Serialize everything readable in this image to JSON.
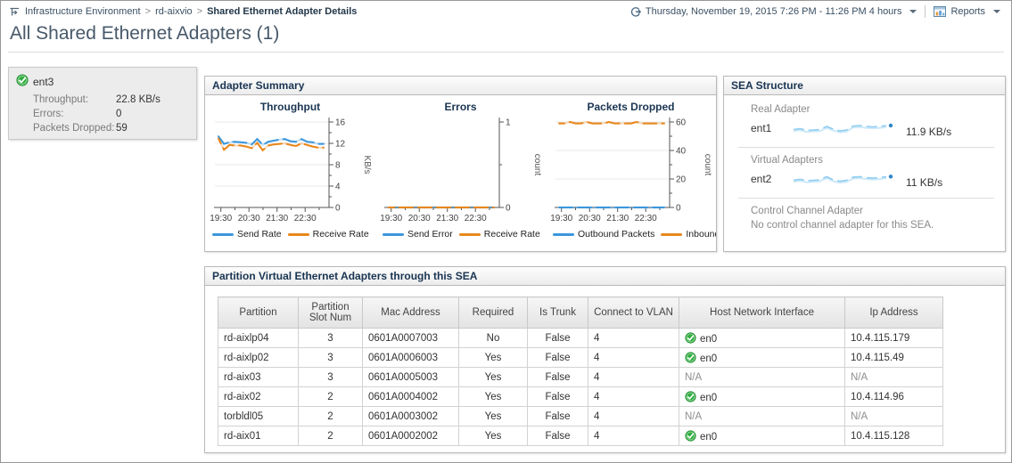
{
  "header": {
    "breadcrumb": {
      "separator": ">",
      "items": [
        "Infrastructure Environment",
        "rd-aixvio",
        "Shared Ethernet Adapter Details"
      ]
    },
    "time_range": "Thursday, November 19, 2015 7:26 PM - 11:26 PM 4 hours",
    "reports_label": "Reports"
  },
  "page_title": "All Shared Ethernet Adapters (1)",
  "adapter_card": {
    "name": "ent3",
    "rows": [
      {
        "label": "Throughput:",
        "value": "22.8 KB/s"
      },
      {
        "label": "Errors:",
        "value": "0"
      },
      {
        "label": "Packets Dropped:",
        "value": "59"
      }
    ]
  },
  "panels": {
    "adapter_summary_title": "Adapter Summary",
    "sea_structure_title": "SEA Structure",
    "partition_table_title": "Partition Virtual Ethernet Adapters through this SEA"
  },
  "sea_structure": {
    "sections": [
      {
        "label": "Real Adapter",
        "adapter": "ent1",
        "value": "11.9 KB/s",
        "spark": [
          11.4,
          11.6,
          11.2,
          11.3,
          11.4,
          12.1,
          11.5,
          11.1,
          11.3,
          12.2,
          12.3,
          12.1,
          12.0,
          12.1,
          12.3
        ]
      },
      {
        "label": "Virtual Adapters",
        "adapter": "ent2",
        "value": "11 KB/s",
        "spark": [
          10.9,
          11.1,
          10.8,
          10.9,
          11.0,
          11.6,
          11.0,
          10.7,
          10.9,
          11.5,
          11.6,
          11.4,
          11.3,
          11.4,
          11.6
        ]
      },
      {
        "label": "Control Channel Adapter",
        "message": "No control channel adapter for this SEA."
      }
    ]
  },
  "chart_data": [
    {
      "type": "line",
      "title": "Throughput",
      "xlabel": "",
      "ylabel": "KB/s",
      "ylim": [
        0,
        16
      ],
      "yticks": [
        0,
        4,
        8,
        12,
        16
      ],
      "yminor": [
        2,
        6,
        10,
        14
      ],
      "xlim": [
        19.35,
        23.35
      ],
      "xticks": [
        19.5,
        20.5,
        21.5,
        22.5
      ],
      "xminor": [
        20,
        21,
        22,
        23
      ],
      "xtick_labels": [
        "19:30",
        "20:30",
        "21:30",
        "22:30"
      ],
      "grid": true,
      "legend_position": "bottom",
      "series": [
        {
          "name": "Send Rate",
          "color": "#3b97dd",
          "values": [
            13.3,
            11.9,
            12.2,
            12.3,
            12.2,
            12.1,
            11.8,
            12.8,
            11.7,
            12.3,
            12.5,
            12.7,
            12.8,
            12.4,
            12.3,
            12.8,
            12.3,
            12.2,
            11.9,
            11.9
          ]
        },
        {
          "name": "Receive Rate",
          "color": "#e8871c",
          "values": [
            12.9,
            10.8,
            11.7,
            11.6,
            11.6,
            11.4,
            11.1,
            12.1,
            10.7,
            11.6,
            11.8,
            11.9,
            12.0,
            11.7,
            11.5,
            12.0,
            11.7,
            11.4,
            11.2,
            11.2
          ]
        }
      ]
    },
    {
      "type": "line",
      "title": "Errors",
      "xlabel": "",
      "ylabel": "count",
      "ylim": [
        0,
        1
      ],
      "yticks": [
        0,
        1
      ],
      "yminor": [
        0.5
      ],
      "xlim": [
        19.35,
        23.35
      ],
      "xticks": [
        19.5,
        20.5,
        21.5,
        22.5
      ],
      "xminor": [
        20,
        21,
        22,
        23
      ],
      "xtick_labels": [
        "19:30",
        "20:30",
        "21:30",
        "22:30"
      ],
      "grid": false,
      "legend_position": "bottom",
      "series": [
        {
          "name": "Send Error",
          "color": "#3b97dd",
          "values": [
            0,
            0,
            0,
            0,
            0,
            0,
            0,
            0,
            0,
            0,
            0,
            0,
            0,
            0,
            0,
            0,
            0,
            0,
            0,
            0
          ]
        },
        {
          "name": "Receive Rate",
          "color": "#e8871c",
          "values": [
            0,
            0,
            0,
            0,
            0,
            0,
            0,
            0,
            0,
            0,
            0,
            0,
            0,
            0,
            0,
            0,
            0,
            0,
            0,
            0
          ]
        }
      ]
    },
    {
      "type": "line",
      "title": "Packets Dropped",
      "xlabel": "",
      "ylabel": "count",
      "ylim": [
        0,
        60
      ],
      "yticks": [
        0,
        20,
        40,
        60
      ],
      "yminor": [
        10,
        30,
        50
      ],
      "xlim": [
        19.35,
        23.35
      ],
      "xticks": [
        19.5,
        20.5,
        21.5,
        22.5
      ],
      "xminor": [
        20,
        21,
        22,
        23
      ],
      "xtick_labels": [
        "19:30",
        "20:30",
        "21:30",
        "22:30"
      ],
      "grid": true,
      "legend_position": "bottom",
      "series": [
        {
          "name": "Outbound Packets",
          "color": "#3b97dd",
          "values": [
            0,
            0,
            0,
            0,
            0,
            0,
            0,
            0,
            0,
            0,
            0,
            0,
            0,
            0,
            0,
            0,
            0,
            0,
            0,
            0
          ]
        },
        {
          "name": "Inbound Packets",
          "color": "#e8871c",
          "values": [
            59,
            59,
            60,
            59,
            59,
            60,
            59,
            59,
            59,
            60,
            59,
            59,
            59,
            59,
            60,
            59,
            59,
            59,
            59,
            59
          ]
        }
      ]
    }
  ],
  "partition_table": {
    "columns": [
      "Partition",
      "Partition Slot Num",
      "Mac Address",
      "Required",
      "Is Trunk",
      "Connect to VLAN",
      "Host Network Interface",
      "Ip Address"
    ],
    "rows": [
      {
        "partition": "rd-aixlp04",
        "slot": "3",
        "mac": "0601A0007003",
        "required": "No",
        "is_trunk": "False",
        "vlan": "4",
        "host": "en0",
        "host_icon": true,
        "ip": "10.4.115.179"
      },
      {
        "partition": "rd-aixlp02",
        "slot": "3",
        "mac": "0601A0006003",
        "required": "Yes",
        "is_trunk": "False",
        "vlan": "4",
        "host": "en0",
        "host_icon": true,
        "ip": "10.4.115.49"
      },
      {
        "partition": "rd-aix03",
        "slot": "3",
        "mac": "0601A0005003",
        "required": "Yes",
        "is_trunk": "False",
        "vlan": "4",
        "host": "N/A",
        "host_icon": false,
        "ip": "N/A"
      },
      {
        "partition": "rd-aix02",
        "slot": "2",
        "mac": "0601A0004002",
        "required": "Yes",
        "is_trunk": "False",
        "vlan": "4",
        "host": "en0",
        "host_icon": true,
        "ip": "10.4.114.96"
      },
      {
        "partition": "torbldl05",
        "slot": "2",
        "mac": "0601A0003002",
        "required": "Yes",
        "is_trunk": "False",
        "vlan": "4",
        "host": "N/A",
        "host_icon": false,
        "ip": "N/A"
      },
      {
        "partition": "rd-aix01",
        "slot": "2",
        "mac": "0601A0002002",
        "required": "Yes",
        "is_trunk": "False",
        "vlan": "4",
        "host": "en0",
        "host_icon": true,
        "ip": "10.4.115.128"
      }
    ]
  },
  "colors": {
    "accent_blue": "#3b97dd",
    "accent_orange": "#e8871c",
    "check_green": "#2fae3e",
    "spark_blue": "#8fcdf1",
    "header_navy": "#1a3552"
  }
}
